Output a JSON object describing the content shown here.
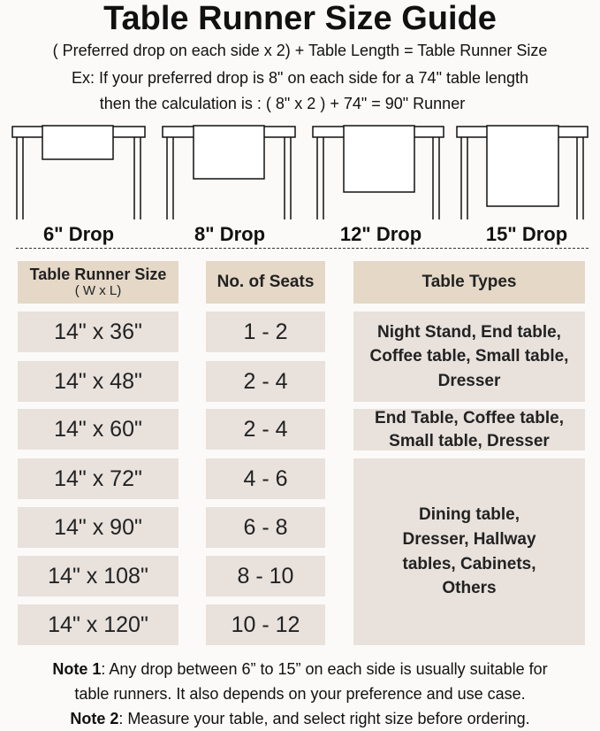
{
  "title": "Table Runner Size Guide",
  "formula": "( Preferred drop on each side x 2) + Table Length = Table Runner Size",
  "example_line1": "Ex: If your preferred drop is 8\" on each side for a 74\" table length",
  "example_line2": "then the calculation is : ( 8\" x 2 ) + 74\" = 90\" Runner",
  "drops": [
    "6\" Drop",
    "8\" Drop",
    "12\" Drop",
    "15\" Drop"
  ],
  "table": {
    "headers": {
      "size": "Table Runner Size",
      "size_sub": "( W x L)",
      "seats": "No. of Seats",
      "types": "Table Types"
    },
    "rows": [
      {
        "size": "14\" x 36\"",
        "seats": "1 - 2"
      },
      {
        "size": "14\" x 48\"",
        "seats": "2 - 4"
      },
      {
        "size": "14\" x 60\"",
        "seats": "2 - 4"
      },
      {
        "size": "14\" x 72\"",
        "seats": "4 - 6"
      },
      {
        "size": "14\" x 90\"",
        "seats": "6 - 8"
      },
      {
        "size": "14\" x 108\"",
        "seats": "8 - 10"
      },
      {
        "size": "14\" x 120\"",
        "seats": "10 - 12"
      }
    ],
    "types": [
      "Night Stand, End table, Coffee table, Small table, Dresser",
      "End Table, Coffee table, Small table, Dresser",
      "Dining table, Dresser, Hallway tables, Cabinets, Others"
    ]
  },
  "notes": {
    "note1_label": "Note 1",
    "note1_text": ": Any drop between 6” to 15” on each side is usually suitable for",
    "note1_text2": "table runners. It also depends on your preference and use case.",
    "note2_label": "Note 2",
    "note2_text": ": Measure your table, and select right size before ordering."
  },
  "colors": {
    "header": "#e5d8c7",
    "cell": "#e8e1dc"
  }
}
